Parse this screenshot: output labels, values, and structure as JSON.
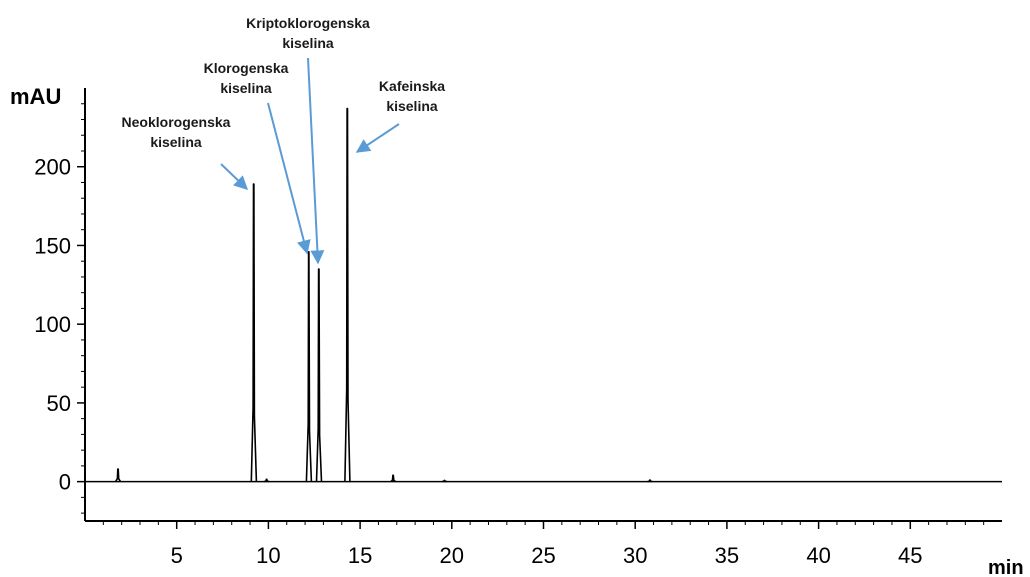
{
  "chart_data": {
    "type": "line",
    "title": "",
    "xlabel": "min",
    "ylabel": "mAU",
    "xlim": [
      0,
      50
    ],
    "ylim": [
      -25,
      250
    ],
    "x_ticks": [
      5,
      10,
      15,
      20,
      25,
      30,
      35,
      40,
      45
    ],
    "y_ticks": [
      0,
      50,
      100,
      150,
      200
    ],
    "grid": false,
    "line_color": "#000000",
    "arrow_color": "#5b9bd5",
    "peaks": [
      {
        "x": 1.8,
        "y": 8
      },
      {
        "x": 9.2,
        "y": 189
      },
      {
        "x": 9.9,
        "y": 1.5
      },
      {
        "x": 12.2,
        "y": 146
      },
      {
        "x": 12.75,
        "y": 135
      },
      {
        "x": 14.3,
        "y": 237
      },
      {
        "x": 16.8,
        "y": 4
      },
      {
        "x": 19.6,
        "y": 0.8
      },
      {
        "x": 30.8,
        "y": 1
      }
    ],
    "annotations": [
      {
        "lines": [
          "Neoklorogenska",
          "kiselina"
        ],
        "x": 9.2,
        "y": 189
      },
      {
        "lines": [
          "Klorogenska",
          "kiselina"
        ],
        "x": 12.2,
        "y": 146
      },
      {
        "lines": [
          "Kriptoklorogenska",
          "kiselina"
        ],
        "x": 12.75,
        "y": 135
      },
      {
        "lines": [
          "Kafeinska",
          "kiselina"
        ],
        "x": 14.3,
        "y": 237
      }
    ]
  }
}
